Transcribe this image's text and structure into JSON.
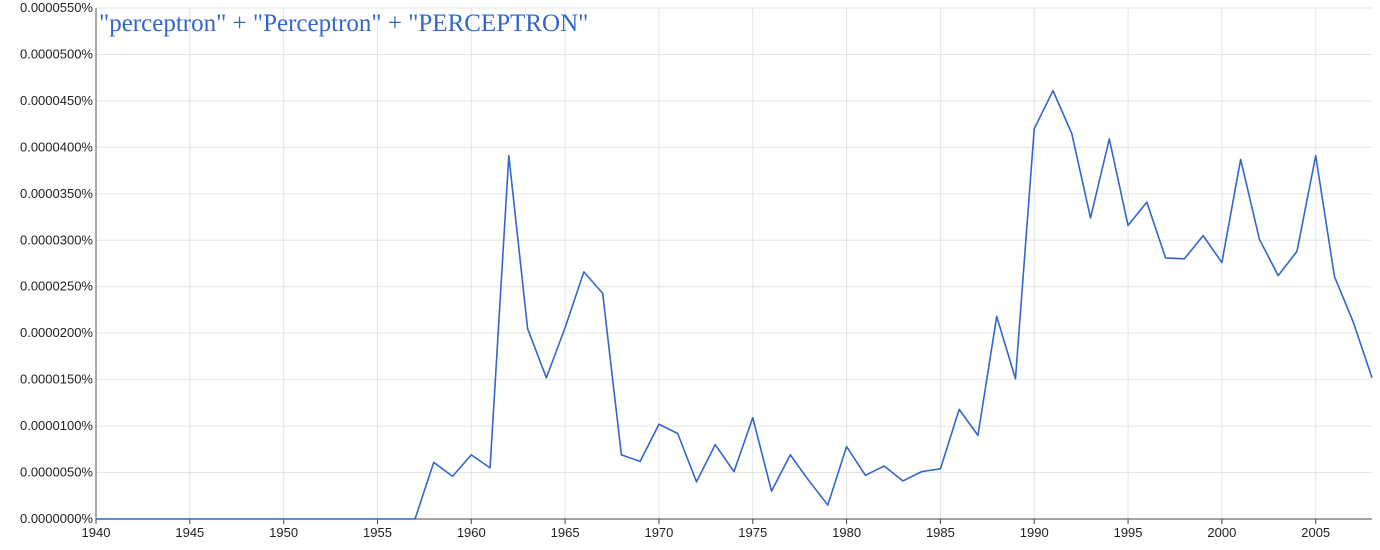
{
  "chart_data": {
    "type": "line",
    "title": "",
    "xlabel": "",
    "ylabel": "",
    "xlim": [
      1940,
      2008
    ],
    "ylim": [
      0,
      5.5e-05
    ],
    "grid": true,
    "x_ticks": [
      1940,
      1945,
      1950,
      1955,
      1960,
      1965,
      1970,
      1975,
      1980,
      1985,
      1990,
      1995,
      2000,
      2005
    ],
    "x_tick_labels": [
      "1940",
      "1945",
      "1950",
      "1955",
      "1960",
      "1965",
      "1970",
      "1975",
      "1980",
      "1985",
      "1990",
      "1995",
      "2000",
      "2005"
    ],
    "y_ticks": [
      0,
      5e-06,
      1e-05,
      1.5e-05,
      2e-05,
      2.5e-05,
      3e-05,
      3.5e-05,
      4e-05,
      4.5e-05,
      5e-05,
      5.5e-05
    ],
    "y_tick_labels": [
      "0.0000000%",
      "0.0000050%",
      "0.0000100%",
      "0.0000150%",
      "0.0000200%",
      "0.0000250%",
      "0.0000300%",
      "0.0000350%",
      "0.0000400%",
      "0.0000450%",
      "0.0000500%",
      "0.0000550%"
    ],
    "series": [
      {
        "name": "\"perceptron\" + \"Perceptron\" + \"PERCEPTRON\"",
        "color": "#3366cc",
        "x": [
          1940,
          1941,
          1942,
          1943,
          1944,
          1945,
          1946,
          1947,
          1948,
          1949,
          1950,
          1951,
          1952,
          1953,
          1954,
          1955,
          1956,
          1957,
          1958,
          1959,
          1960,
          1961,
          1962,
          1963,
          1964,
          1965,
          1966,
          1967,
          1968,
          1969,
          1970,
          1971,
          1972,
          1973,
          1974,
          1975,
          1976,
          1977,
          1978,
          1979,
          1980,
          1981,
          1982,
          1983,
          1984,
          1985,
          1986,
          1987,
          1988,
          1989,
          1990,
          1991,
          1992,
          1993,
          1994,
          1995,
          1996,
          1997,
          1998,
          1999,
          2000,
          2001,
          2002,
          2003,
          2004,
          2005,
          2006,
          2007,
          2008
        ],
        "values": [
          0,
          0,
          0,
          0,
          0,
          0,
          0,
          0,
          0,
          0,
          0,
          0,
          0,
          0,
          0,
          0,
          0,
          0,
          6.1e-06,
          4.6e-06,
          6.9e-06,
          5.5e-06,
          3.91e-05,
          2.05e-05,
          1.52e-05,
          2.06e-05,
          2.66e-05,
          2.43e-05,
          6.9e-06,
          6.2e-06,
          1.02e-05,
          9.2e-06,
          4e-06,
          8e-06,
          5.1e-06,
          1.09e-05,
          3e-06,
          6.9e-06,
          4.1e-06,
          1.5e-06,
          7.8e-06,
          4.7e-06,
          5.7e-06,
          4.1e-06,
          5.1e-06,
          5.4e-06,
          1.18e-05,
          9e-06,
          2.18e-05,
          1.51e-05,
          4.2e-05,
          4.61e-05,
          4.15e-05,
          3.24e-05,
          4.09e-05,
          3.16e-05,
          3.41e-05,
          2.81e-05,
          2.8e-05,
          3.05e-05,
          2.76e-05,
          3.87e-05,
          3.01e-05,
          2.62e-05,
          2.88e-05,
          3.91e-05,
          2.61e-05,
          2.12e-05,
          1.52e-05
        ]
      }
    ]
  }
}
